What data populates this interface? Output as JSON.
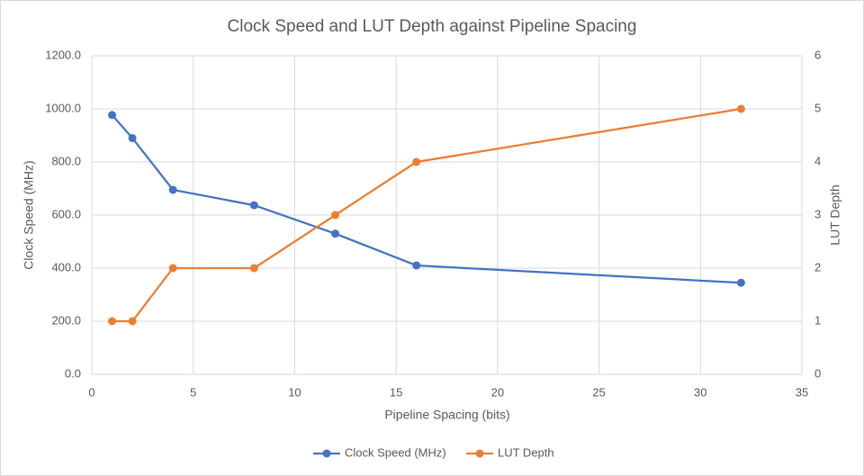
{
  "chart_data": {
    "type": "line",
    "title": "Clock Speed and LUT Depth against Pipeline Spacing",
    "x_label": "Pipeline Spacing (bits)",
    "y_label": "Clock Speed (MHz)",
    "y2_label": "LUT Depth",
    "x": [
      1,
      2,
      4,
      8,
      12,
      16,
      32
    ],
    "series": [
      {
        "name": "Clock Speed (MHz)",
        "color": "#4472c4",
        "values": [
          977,
          890,
          695,
          637,
          530,
          410,
          345
        ]
      },
      {
        "name": "LUT Depth",
        "color": "#ed7d31",
        "axis": "y2",
        "values": [
          1,
          1,
          2,
          2,
          3,
          4,
          5
        ]
      }
    ],
    "xlim": [
      0,
      35
    ],
    "xticks": [
      0,
      5,
      10,
      15,
      20,
      25,
      30,
      35
    ],
    "ylim": [
      0,
      1200
    ],
    "yticks": [
      {
        "value": 0,
        "label": "0.0"
      },
      {
        "value": 200,
        "label": "200.0"
      },
      {
        "value": 400,
        "label": "400.0"
      },
      {
        "value": 600,
        "label": "600.0"
      },
      {
        "value": 800,
        "label": "800.0"
      },
      {
        "value": 1000,
        "label": "1000.0"
      },
      {
        "value": 1200,
        "label": "1200.0"
      }
    ],
    "y2lim": [
      0,
      6
    ],
    "y2ticks": [
      0,
      1,
      2,
      3,
      4,
      5,
      6
    ],
    "grid": true,
    "legend": "bottom"
  }
}
